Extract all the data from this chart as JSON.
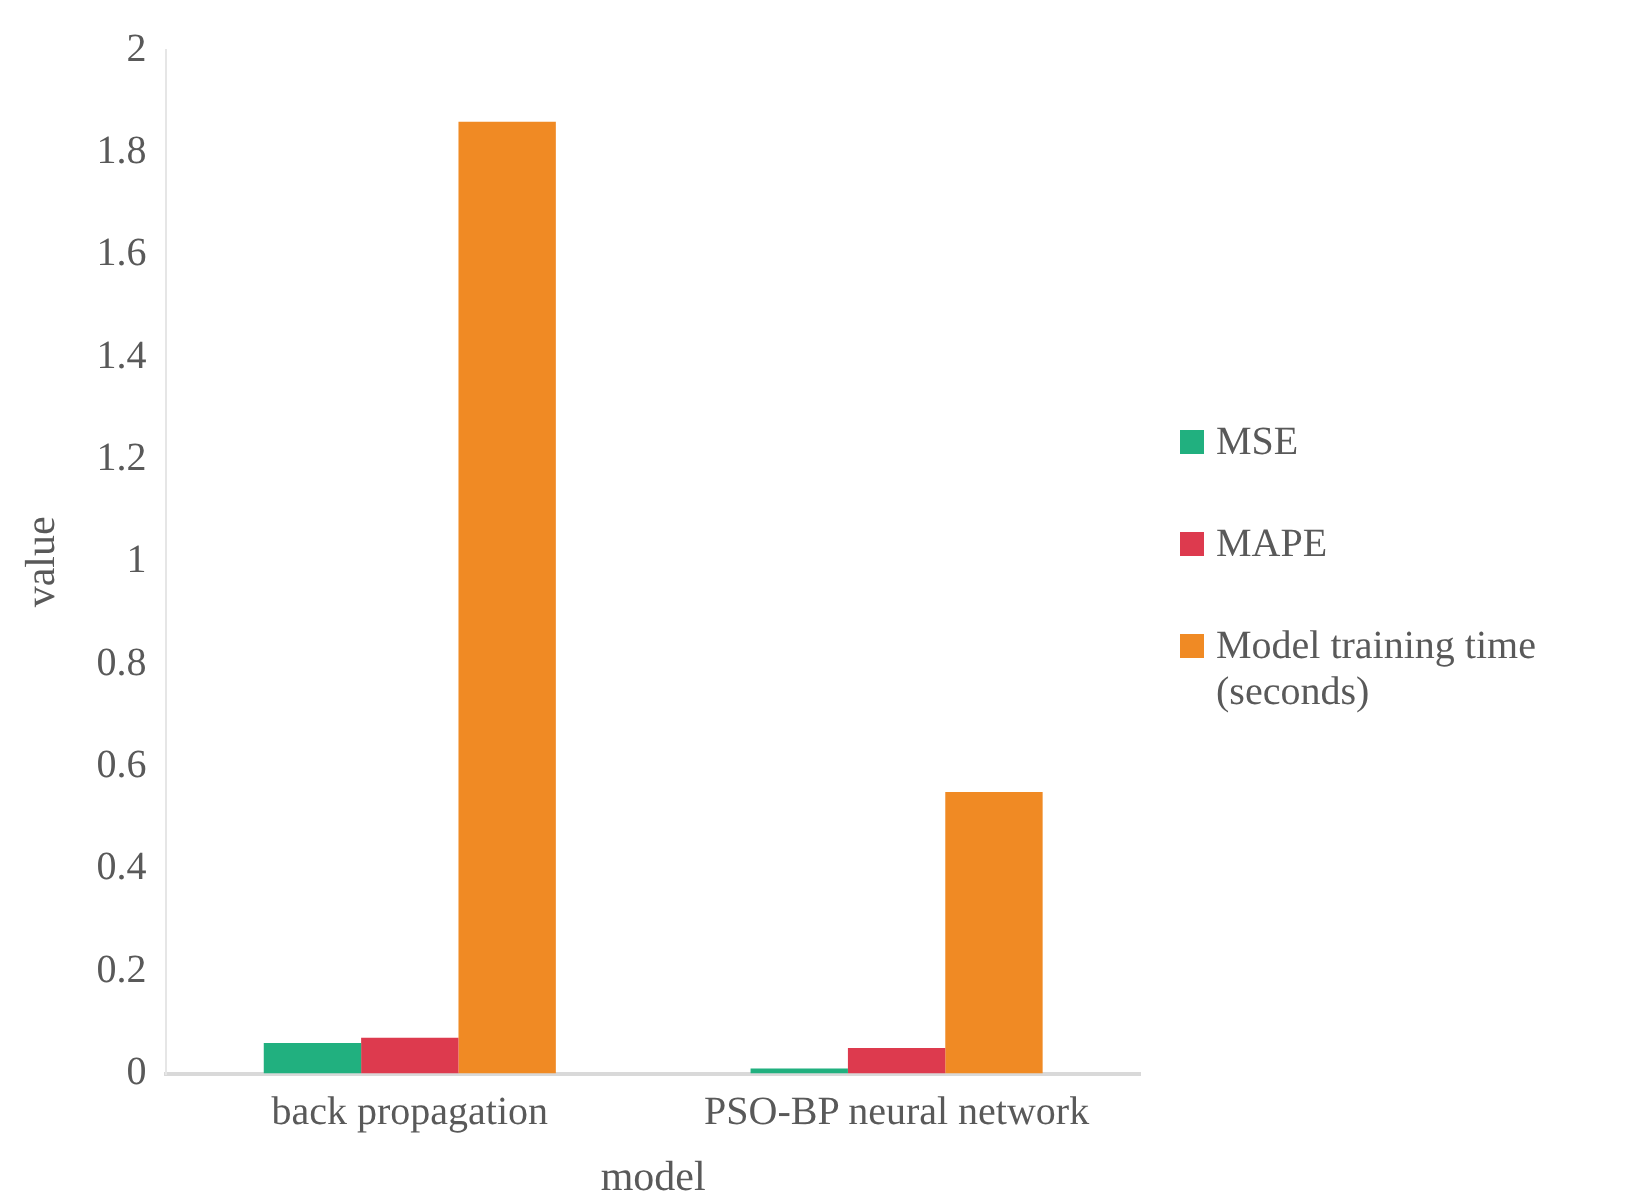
{
  "chart_data": {
    "type": "bar",
    "xlabel": "model",
    "ylabel": "value",
    "categories": [
      "back propagation",
      "PSO-BP neural network"
    ],
    "series": [
      {
        "name": "MSE",
        "color": "#21b07f",
        "values": [
          0.06,
          0.01
        ]
      },
      {
        "name": "MAPE",
        "color": "#dd3a4e",
        "values": [
          0.07,
          0.05
        ]
      },
      {
        "name": "Model training time (seconds)",
        "color": "#f08a24",
        "values": [
          1.86,
          0.55
        ]
      }
    ],
    "ylim": [
      0,
      2
    ],
    "yticks": [
      0,
      0.2,
      0.4,
      0.6,
      0.8,
      1,
      1.2,
      1.4,
      1.6,
      1.8,
      2
    ],
    "grid": false,
    "legend": "right"
  }
}
